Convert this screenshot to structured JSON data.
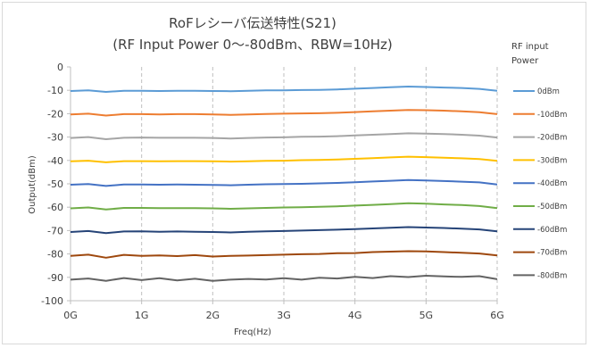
{
  "chart_data": {
    "type": "line",
    "title": "RoFレシーバ伝送特性(S21)",
    "subtitle": "(RF Input Power 0〜-80dBm、RBW=10Hz)",
    "xlabel": "Freq(Hz)",
    "ylabel": "Output(dBm)",
    "ylim": [
      -100,
      0
    ],
    "y_ticks": [
      0,
      -10,
      -20,
      -30,
      -40,
      -50,
      -60,
      -70,
      -80,
      -90,
      -100
    ],
    "xlim": [
      0,
      6
    ],
    "x_ticks": [
      0,
      1,
      2,
      3,
      4,
      5,
      6
    ],
    "x_tick_labels": [
      "0G",
      "1G",
      "2G",
      "3G",
      "4G",
      "5G",
      "6G"
    ],
    "grid": "vertical dashed",
    "legend_title": [
      "RF input",
      "Power"
    ],
    "legend_placement": "right",
    "x": [
      0,
      0.25,
      0.5,
      0.75,
      1,
      1.25,
      1.5,
      1.75,
      2,
      2.25,
      2.5,
      2.75,
      3,
      3.25,
      3.5,
      3.75,
      4,
      4.25,
      4.5,
      4.75,
      5,
      5.25,
      5.5,
      5.75,
      6
    ],
    "series": [
      {
        "name": "0dBm",
        "color": "#5b9bd5",
        "values": [
          -10.3,
          -10.0,
          -10.7,
          -10.2,
          -10.2,
          -10.3,
          -10.2,
          -10.2,
          -10.3,
          -10.4,
          -10.2,
          -10.0,
          -10.0,
          -9.9,
          -9.8,
          -9.6,
          -9.3,
          -9.0,
          -8.7,
          -8.4,
          -8.6,
          -8.8,
          -9.0,
          -9.4,
          -10.2
        ]
      },
      {
        "name": "-10dBm",
        "color": "#ed7d31",
        "values": [
          -20.3,
          -20.0,
          -20.8,
          -20.2,
          -20.2,
          -20.3,
          -20.2,
          -20.2,
          -20.3,
          -20.5,
          -20.3,
          -20.1,
          -20.0,
          -19.9,
          -19.8,
          -19.6,
          -19.3,
          -19.0,
          -18.7,
          -18.4,
          -18.5,
          -18.7,
          -19.0,
          -19.4,
          -20.2
        ]
      },
      {
        "name": "-20dBm",
        "color": "#a5a5a5",
        "values": [
          -30.4,
          -30.0,
          -30.9,
          -30.3,
          -30.2,
          -30.3,
          -30.3,
          -30.3,
          -30.4,
          -30.6,
          -30.4,
          -30.2,
          -30.1,
          -29.9,
          -29.8,
          -29.6,
          -29.3,
          -29.0,
          -28.7,
          -28.4,
          -28.5,
          -28.7,
          -29.0,
          -29.4,
          -30.2
        ]
      },
      {
        "name": "-30dBm",
        "color": "#ffc000",
        "values": [
          -40.4,
          -40.1,
          -40.8,
          -40.3,
          -40.3,
          -40.4,
          -40.3,
          -40.3,
          -40.4,
          -40.5,
          -40.4,
          -40.2,
          -40.1,
          -39.9,
          -39.8,
          -39.6,
          -39.3,
          -39.0,
          -38.7,
          -38.4,
          -38.6,
          -38.8,
          -39.1,
          -39.4,
          -40.2
        ]
      },
      {
        "name": "-40dBm",
        "color": "#4472c4",
        "values": [
          -50.4,
          -50.1,
          -50.9,
          -50.3,
          -50.3,
          -50.4,
          -50.3,
          -50.4,
          -50.5,
          -50.6,
          -50.4,
          -50.2,
          -50.1,
          -50.0,
          -49.8,
          -49.6,
          -49.3,
          -49.0,
          -48.7,
          -48.4,
          -48.6,
          -48.8,
          -49.1,
          -49.4,
          -50.3
        ]
      },
      {
        "name": "-50dBm",
        "color": "#70ad47",
        "values": [
          -60.5,
          -60.1,
          -61.0,
          -60.3,
          -60.3,
          -60.4,
          -60.4,
          -60.4,
          -60.5,
          -60.7,
          -60.5,
          -60.3,
          -60.1,
          -60.0,
          -59.8,
          -59.6,
          -59.3,
          -59.0,
          -58.7,
          -58.3,
          -58.5,
          -58.8,
          -59.1,
          -59.5,
          -60.4
        ]
      },
      {
        "name": "-60dBm",
        "color": "#264478",
        "values": [
          -70.6,
          -70.2,
          -71.1,
          -70.4,
          -70.3,
          -70.5,
          -70.4,
          -70.5,
          -70.6,
          -70.8,
          -70.5,
          -70.3,
          -70.2,
          -70.0,
          -69.8,
          -69.6,
          -69.4,
          -69.1,
          -68.8,
          -68.5,
          -68.7,
          -68.9,
          -69.2,
          -69.5,
          -70.3
        ]
      },
      {
        "name": "-70dBm",
        "color": "#9e480e",
        "values": [
          -80.8,
          -80.3,
          -81.6,
          -80.4,
          -80.8,
          -80.6,
          -80.9,
          -80.5,
          -81.1,
          -80.8,
          -80.7,
          -80.5,
          -80.3,
          -80.1,
          -80.0,
          -79.7,
          -79.6,
          -79.2,
          -79.0,
          -78.8,
          -78.9,
          -79.2,
          -79.5,
          -79.8,
          -80.6
        ]
      },
      {
        "name": "-80dBm",
        "color": "#636363",
        "values": [
          -91.0,
          -90.5,
          -91.5,
          -90.3,
          -91.2,
          -90.4,
          -91.3,
          -90.6,
          -91.5,
          -91.0,
          -90.7,
          -90.9,
          -90.4,
          -91.0,
          -90.2,
          -90.5,
          -89.8,
          -90.3,
          -89.5,
          -89.9,
          -89.3,
          -89.6,
          -89.8,
          -89.5,
          -90.8
        ]
      }
    ]
  }
}
